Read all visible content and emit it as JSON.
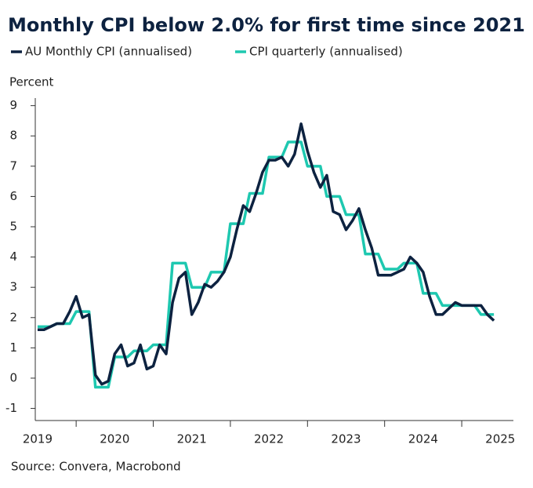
{
  "chart_data": {
    "type": "line",
    "title": "Monthly CPI below 2.0% for first time since 2021",
    "y_label": "Percent",
    "source": "Source: Convera, Macrobond",
    "x": [
      2019.5,
      2019.583,
      2019.667,
      2019.75,
      2019.833,
      2019.917,
      2020,
      2020.083,
      2020.167,
      2020.25,
      2020.333,
      2020.417,
      2020.5,
      2020.583,
      2020.667,
      2020.75,
      2020.833,
      2020.917,
      2021,
      2021.083,
      2021.167,
      2021.25,
      2021.333,
      2021.417,
      2021.5,
      2021.583,
      2021.667,
      2021.75,
      2021.833,
      2021.917,
      2022,
      2022.083,
      2022.167,
      2022.25,
      2022.333,
      2022.417,
      2022.5,
      2022.583,
      2022.667,
      2022.75,
      2022.833,
      2022.917,
      2023,
      2023.083,
      2023.167,
      2023.25,
      2023.333,
      2023.417,
      2023.5,
      2023.583,
      2023.667,
      2023.75,
      2023.833,
      2023.917,
      2024,
      2024.083,
      2024.167,
      2024.25,
      2024.333,
      2024.417,
      2024.5,
      2024.583,
      2024.667,
      2024.75,
      2024.833,
      2024.917,
      2025,
      2025.083,
      2025.167,
      2025.25,
      2025.333,
      2025.417
    ],
    "series": [
      {
        "name": "AU Monthly CPI (annualised)",
        "color": "#0d2240",
        "values": [
          1.6,
          1.6,
          1.7,
          1.8,
          1.8,
          2.2,
          2.7,
          2.0,
          2.1,
          0.1,
          -0.2,
          -0.1,
          0.8,
          1.1,
          0.4,
          0.5,
          1.1,
          0.3,
          0.4,
          1.1,
          0.8,
          2.5,
          3.3,
          3.5,
          2.1,
          2.5,
          3.1,
          3.0,
          3.2,
          3.5,
          4.0,
          4.9,
          5.7,
          5.5,
          6.1,
          6.8,
          7.2,
          7.2,
          7.3,
          7.0,
          7.4,
          8.4,
          7.5,
          6.8,
          6.3,
          6.7,
          5.5,
          5.4,
          4.9,
          5.2,
          5.6,
          4.9,
          4.3,
          3.4,
          3.4,
          3.4,
          3.5,
          3.6,
          4.0,
          3.8,
          3.5,
          2.7,
          2.1,
          2.1,
          2.3,
          2.5,
          2.4,
          2.4,
          2.4,
          2.4,
          2.1,
          1.9
        ]
      },
      {
        "name": "CPI quarterly (annualised)",
        "color": "#1ec8b0",
        "values": [
          1.7,
          1.7,
          1.7,
          1.8,
          1.8,
          1.8,
          2.2,
          2.2,
          2.2,
          -0.3,
          -0.3,
          -0.3,
          0.7,
          0.7,
          0.7,
          0.9,
          0.9,
          0.9,
          1.1,
          1.1,
          1.1,
          3.8,
          3.8,
          3.8,
          3.0,
          3.0,
          3.0,
          3.5,
          3.5,
          3.5,
          5.1,
          5.1,
          5.1,
          6.1,
          6.1,
          6.1,
          7.3,
          7.3,
          7.3,
          7.8,
          7.8,
          7.8,
          7.0,
          7.0,
          7.0,
          6.0,
          6.0,
          6.0,
          5.4,
          5.4,
          5.4,
          4.1,
          4.1,
          4.1,
          3.6,
          3.6,
          3.6,
          3.8,
          3.8,
          3.8,
          2.8,
          2.8,
          2.8,
          2.4,
          2.4,
          2.4,
          2.4,
          2.4,
          2.4,
          2.1,
          2.1,
          2.1
        ]
      }
    ],
    "xlim": [
      2019.47,
      2025.67
    ],
    "xticks": [
      2020,
      2021,
      2022,
      2023,
      2024,
      2025
    ],
    "xtick_labels": [
      {
        "value": 2019.5,
        "label": "2019"
      },
      {
        "value": 2020.5,
        "label": "2020"
      },
      {
        "value": 2021.5,
        "label": "2021"
      },
      {
        "value": 2022.5,
        "label": "2022"
      },
      {
        "value": 2023.5,
        "label": "2023"
      },
      {
        "value": 2024.5,
        "label": "2024"
      },
      {
        "value": 2025.5,
        "label": "2025"
      }
    ],
    "ylim": [
      -1.4,
      9.25
    ],
    "yticks": [
      -1,
      0,
      1,
      2,
      3,
      4,
      5,
      6,
      7,
      8,
      9
    ],
    "grid": false
  }
}
